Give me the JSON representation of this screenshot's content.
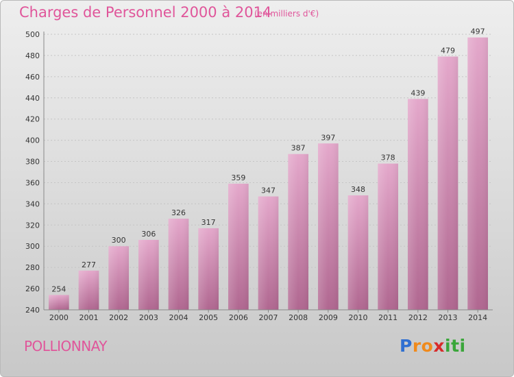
{
  "header": {
    "title": "Charges de Personnel 2000 à 2014",
    "subtitle": "(en milliers d'€)"
  },
  "footer": {
    "commune": "POLLIONNAY",
    "logo": {
      "letters": [
        "P",
        "r",
        "o",
        "x",
        "i",
        "t",
        "i"
      ],
      "colors": [
        "#2f6fd1",
        "#f08a1c",
        "#f08a1c",
        "#d82a2a",
        "#3aa63a",
        "#3aa63a",
        "#3aa63a"
      ]
    }
  },
  "colors": {
    "accent": "#e0559a",
    "bar_top": "#e4a8cb",
    "bar_bottom": "#b06790"
  },
  "chart_data": {
    "type": "bar",
    "title": "Charges de Personnel 2000 à 2014",
    "subtitle": "(en milliers d'€)",
    "categories": [
      "2000",
      "2001",
      "2002",
      "2003",
      "2004",
      "2005",
      "2006",
      "2007",
      "2008",
      "2009",
      "2010",
      "2011",
      "2012",
      "2013",
      "2014"
    ],
    "values": [
      254,
      277,
      300,
      306,
      326,
      317,
      359,
      347,
      387,
      397,
      348,
      378,
      439,
      479,
      497
    ],
    "ylim": [
      240,
      500
    ],
    "yticks": [
      240,
      260,
      280,
      300,
      320,
      340,
      360,
      380,
      400,
      420,
      440,
      460,
      480,
      500
    ],
    "grid": true,
    "data_labels": true
  }
}
